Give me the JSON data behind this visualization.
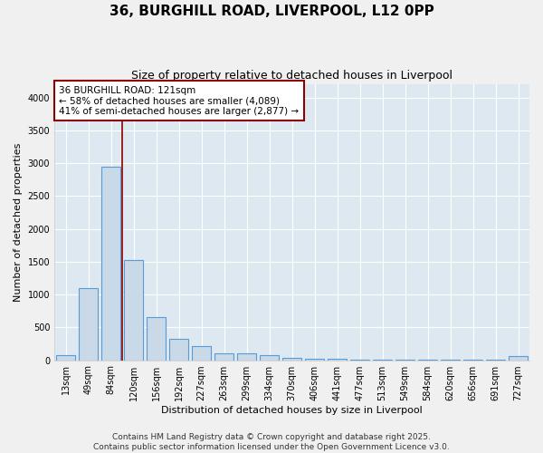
{
  "title1": "36, BURGHILL ROAD, LIVERPOOL, L12 0PP",
  "title2": "Size of property relative to detached houses in Liverpool",
  "xlabel": "Distribution of detached houses by size in Liverpool",
  "ylabel": "Number of detached properties",
  "bar_labels": [
    "13sqm",
    "49sqm",
    "84sqm",
    "120sqm",
    "156sqm",
    "192sqm",
    "227sqm",
    "263sqm",
    "299sqm",
    "334sqm",
    "370sqm",
    "406sqm",
    "441sqm",
    "477sqm",
    "513sqm",
    "549sqm",
    "584sqm",
    "620sqm",
    "656sqm",
    "691sqm",
    "727sqm"
  ],
  "bar_values": [
    75,
    1100,
    2950,
    1520,
    660,
    330,
    210,
    100,
    100,
    75,
    30,
    20,
    15,
    10,
    8,
    5,
    5,
    5,
    5,
    5,
    60
  ],
  "bar_color": "#c9d9e8",
  "bar_edge_color": "#5b9bd5",
  "bg_color": "#dde8f0",
  "grid_color": "#ffffff",
  "annotation_text": "36 BURGHILL ROAD: 121sqm\n← 58% of detached houses are smaller (4,089)\n41% of semi-detached houses are larger (2,877) →",
  "vline_color": "#8b0000",
  "annotation_box_color": "#8b0000",
  "ylim": [
    0,
    4200
  ],
  "yticks": [
    0,
    500,
    1000,
    1500,
    2000,
    2500,
    3000,
    3500,
    4000
  ],
  "footer1": "Contains HM Land Registry data © Crown copyright and database right 2025.",
  "footer2": "Contains public sector information licensed under the Open Government Licence v3.0.",
  "title1_fontsize": 11,
  "title2_fontsize": 9,
  "axis_label_fontsize": 8,
  "tick_fontsize": 7,
  "annotation_fontsize": 7.5,
  "footer_fontsize": 6.5
}
